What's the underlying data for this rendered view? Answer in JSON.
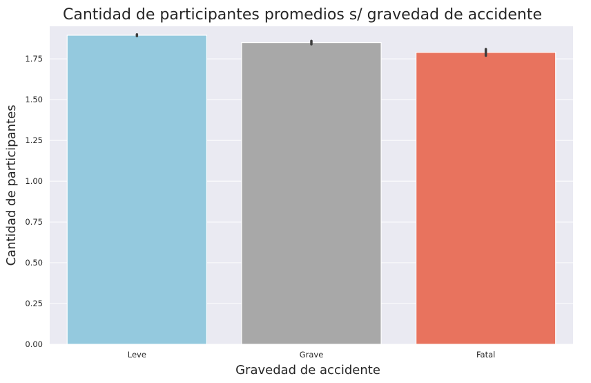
{
  "chart_data": {
    "type": "bar",
    "title": "Cantidad de participantes promedios s/ gravedad de accidente",
    "xlabel": "Gravedad de accidente",
    "ylabel": "Cantidad de participantes",
    "categories": [
      "Leve",
      "Grave",
      "Fatal"
    ],
    "values": [
      1.895,
      1.85,
      1.79
    ],
    "error_bars": [
      [
        1.89,
        1.9
      ],
      [
        1.84,
        1.86
      ],
      [
        1.77,
        1.81
      ]
    ],
    "colors": [
      "#94c9de",
      "#a8a8a8",
      "#e8735e"
    ],
    "ylim": [
      0,
      1.95
    ],
    "yticks": [
      0.0,
      0.25,
      0.5,
      0.75,
      1.0,
      1.25,
      1.5,
      1.75
    ],
    "ytick_labels": [
      "0.00",
      "0.25",
      "0.50",
      "0.75",
      "1.00",
      "1.25",
      "1.50",
      "1.75"
    ],
    "grid": true,
    "background": "#eaeaf2"
  }
}
